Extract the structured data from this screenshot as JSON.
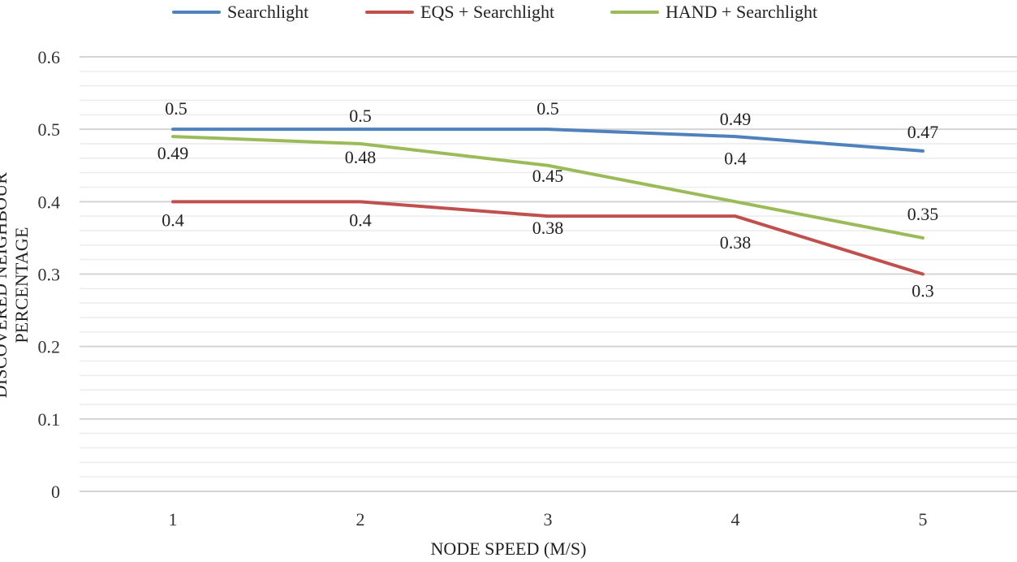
{
  "chart_data": {
    "type": "line",
    "title": "",
    "xlabel": "NODE SPEED (M/S)",
    "ylabel": "DISCOVERED NEIGHBOUR PERCENTAGE",
    "categories": [
      "1",
      "2",
      "3",
      "4",
      "5"
    ],
    "ylim": [
      0,
      0.6
    ],
    "yticks": [
      "0",
      "0.1",
      "0.2",
      "0.3",
      "0.4",
      "0.5",
      "0.6"
    ],
    "grid": true,
    "legend_position": "top",
    "series": [
      {
        "name": "Searchlight",
        "color": "#4f81bd",
        "values": [
          0.5,
          0.5,
          0.5,
          0.49,
          0.47
        ],
        "labels": [
          "0.5",
          "0.5",
          "0.5",
          "0.49",
          "0.47"
        ]
      },
      {
        "name": "EQS + Searchlight",
        "color": "#c0504d",
        "values": [
          0.4,
          0.4,
          0.38,
          0.38,
          0.3
        ],
        "labels": [
          "0.4",
          "0.4",
          "0.38",
          "0.38",
          "0.3"
        ]
      },
      {
        "name": "HAND + Searchlight",
        "color": "#9bbb59",
        "values": [
          0.49,
          0.48,
          0.45,
          0.4,
          0.35
        ],
        "labels": [
          "0.49",
          "0.48",
          "0.45",
          "0.4",
          "0.35"
        ]
      }
    ]
  }
}
